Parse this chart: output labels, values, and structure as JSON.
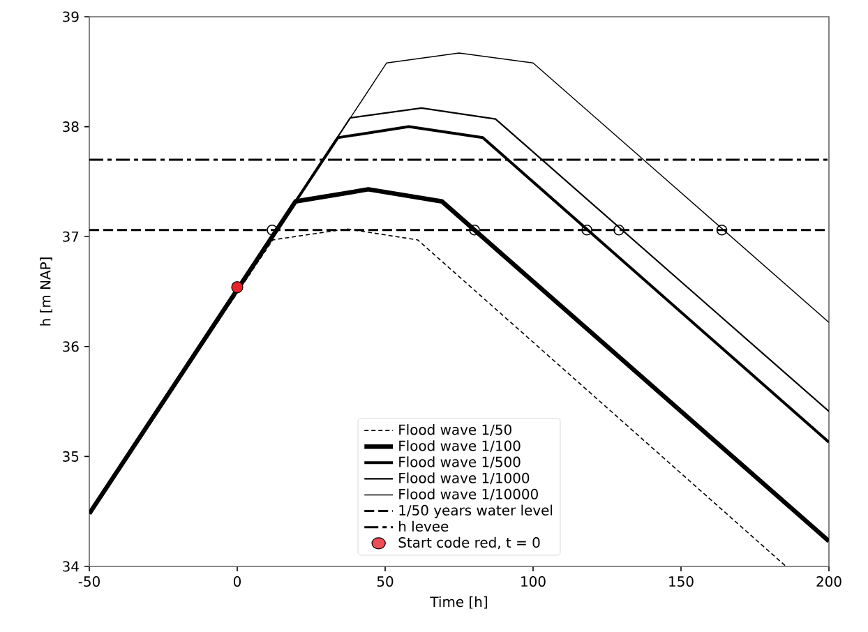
{
  "chart_data": {
    "type": "line",
    "xlabel": "Time [h]",
    "ylabel": "h [m NAP]",
    "xlim": [
      -50,
      200
    ],
    "ylim": [
      34,
      39
    ],
    "xticks": [
      -50,
      0,
      50,
      100,
      150,
      200
    ],
    "yticks": [
      34,
      35,
      36,
      37,
      38,
      39
    ],
    "grid": false,
    "legend": "bottom",
    "marker": "none",
    "series": [
      {
        "name": "Flood wave 1/50",
        "color": "#000000",
        "line_style": "dashed",
        "x": [
          -50,
          12,
          37,
          61,
          185.5
        ],
        "values": [
          34.48,
          36.97,
          37.07,
          36.97,
          34.0
        ]
      },
      {
        "name": "Flood wave 1/100",
        "color": "#000000",
        "line_style": "solid",
        "x": [
          -50,
          19.7,
          44.3,
          69.2,
          200
        ],
        "values": [
          34.48,
          37.32,
          37.43,
          37.32,
          34.23
        ]
      },
      {
        "name": "Flood wave 1/500",
        "color": "#000000",
        "line_style": "solid",
        "x": [
          -50,
          34,
          58,
          83,
          200
        ],
        "values": [
          34.48,
          37.9,
          38.0,
          37.9,
          35.13
        ]
      },
      {
        "name": "Flood wave 1/1000",
        "color": "#000000",
        "line_style": "solid",
        "x": [
          -50,
          38.2,
          62.3,
          87.3,
          200
        ],
        "values": [
          34.48,
          38.08,
          38.17,
          38.07,
          35.41
        ]
      },
      {
        "name": "Flood wave 1/10000",
        "color": "#000000",
        "line_style": "solid",
        "x": [
          -50,
          50.5,
          75,
          100,
          200
        ],
        "values": [
          34.48,
          38.58,
          38.67,
          38.58,
          36.22
        ]
      },
      {
        "type": "scatter",
        "marker": "circle",
        "color": "#000000",
        "x": [
          11.8,
          80.2,
          118.2,
          129,
          163.8
        ],
        "values": [
          37.06,
          37.06,
          37.06,
          37.06,
          37.06
        ]
      },
      {
        "type": "scatter",
        "marker": "circle",
        "name": "Start code red, t = 0",
        "color": "#e8212a",
        "x": [
          0
        ],
        "values": [
          36.54
        ]
      }
    ],
    "ref_lines": [
      {
        "axis": "y",
        "value": 37.06,
        "label": "1/50 years water level",
        "line_style": "dashed",
        "color": "#000000"
      },
      {
        "axis": "y",
        "value": 37.7,
        "label": "h levee",
        "line_style": "dashdot",
        "color": "#000000"
      }
    ]
  }
}
